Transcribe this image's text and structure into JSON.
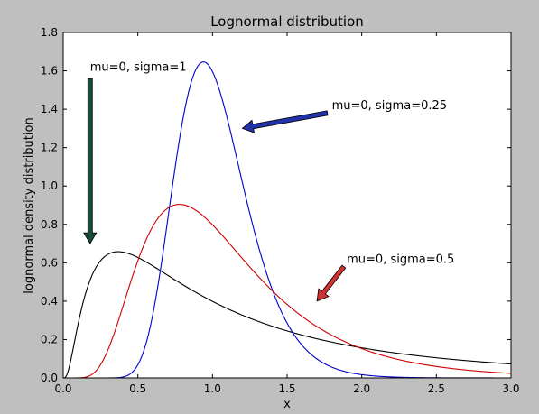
{
  "chart_data": {
    "type": "line",
    "title": "Lognormal distribution",
    "xlabel": "x",
    "ylabel": "lognormal density distribution",
    "xlim": [
      0.0,
      3.0
    ],
    "ylim": [
      0.0,
      1.8
    ],
    "x_ticks": [
      "0.0",
      "0.5",
      "1.0",
      "1.5",
      "2.0",
      "2.5",
      "3.0"
    ],
    "y_ticks": [
      "0.0",
      "0.2",
      "0.4",
      "0.6",
      "0.8",
      "1.0",
      "1.2",
      "1.4",
      "1.6",
      "1.8"
    ],
    "grid": false,
    "series": [
      {
        "mu": 0,
        "sigma": 1.0,
        "color": "#000000"
      },
      {
        "mu": 0,
        "sigma": 0.25,
        "color": "#0000cc"
      },
      {
        "mu": 0,
        "sigma": 0.5,
        "color": "#cc0000"
      }
    ],
    "peaks": [
      {
        "sigma": 1.0,
        "x": 0.37,
        "y": 0.66
      },
      {
        "sigma": 0.25,
        "x": 0.94,
        "y": 1.65
      },
      {
        "sigma": 0.5,
        "x": 0.78,
        "y": 0.9
      }
    ],
    "annotations": [
      {
        "text": "mu=0, sigma=1",
        "text_xy": [
          0.18,
          1.6
        ],
        "arrow_from": [
          0.18,
          1.56
        ],
        "arrow_to": [
          0.18,
          0.7
        ],
        "arrow_color": "#1a4a3a"
      },
      {
        "text": "mu=0, sigma=0.25",
        "text_xy": [
          1.8,
          1.4
        ],
        "arrow_from": [
          1.77,
          1.38
        ],
        "arrow_to": [
          1.2,
          1.3
        ],
        "arrow_color": "#2233aa"
      },
      {
        "text": "mu=0, sigma=0.5",
        "text_xy": [
          1.9,
          0.6
        ],
        "arrow_from": [
          1.88,
          0.58
        ],
        "arrow_to": [
          1.7,
          0.4
        ],
        "arrow_color": "#cc3333"
      }
    ]
  }
}
